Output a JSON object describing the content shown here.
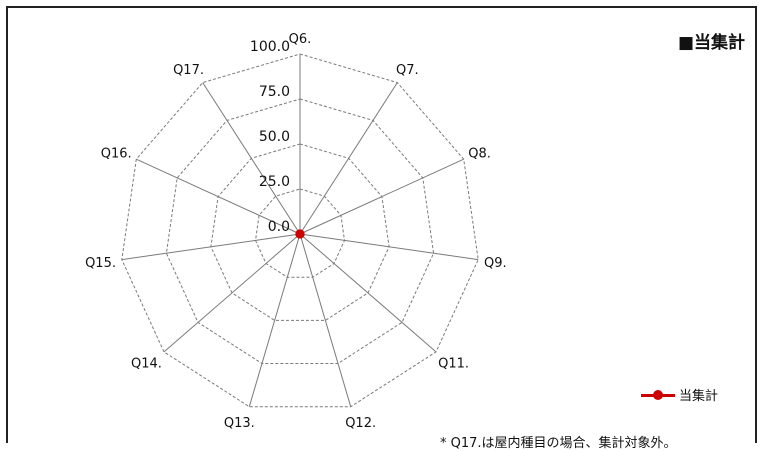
{
  "chart_data": {
    "type": "radar",
    "title": "■当集計",
    "categories": [
      "Q6.",
      "Q7.",
      "Q8.",
      "Q9.",
      "Q11.",
      "Q12.",
      "Q13.",
      "Q14.",
      "Q15.",
      "Q16.",
      "Q17."
    ],
    "radial_ticks": [
      "0.0",
      "25.0",
      "50.0",
      "75.0",
      "100.0"
    ],
    "rlim": [
      0,
      100
    ],
    "series": [
      {
        "name": "当集計",
        "values": [
          0,
          0,
          0,
          0,
          0,
          0,
          0,
          0,
          0,
          0,
          0
        ],
        "color": "#cc0000"
      }
    ],
    "grid": true,
    "legend_position": "bottom-right"
  },
  "footnote": "* Q17.は屋内種目の場合、集計対象外。"
}
